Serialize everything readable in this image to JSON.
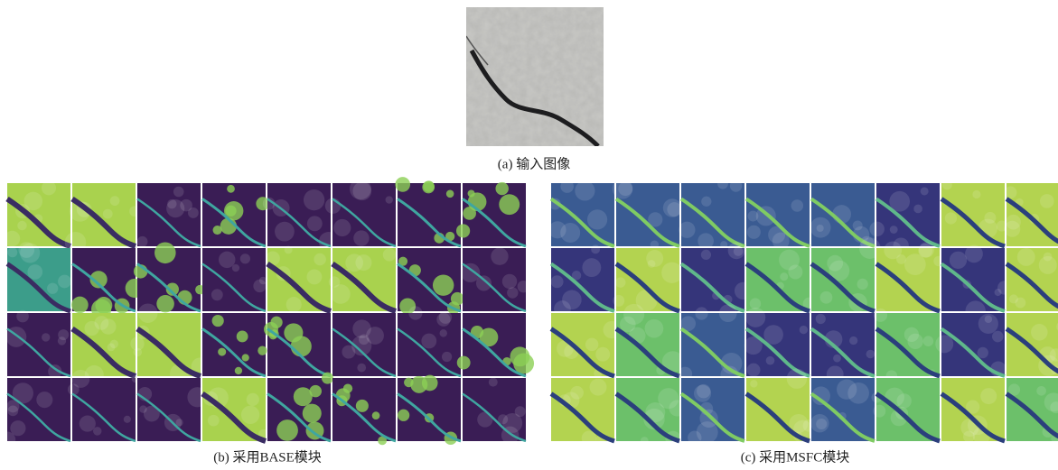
{
  "figure": {
    "captions": {
      "a": "(a) 输入图像",
      "b": "(b) 采用BASE模块",
      "c": "(c) 采用MSFC模块"
    }
  }
}
